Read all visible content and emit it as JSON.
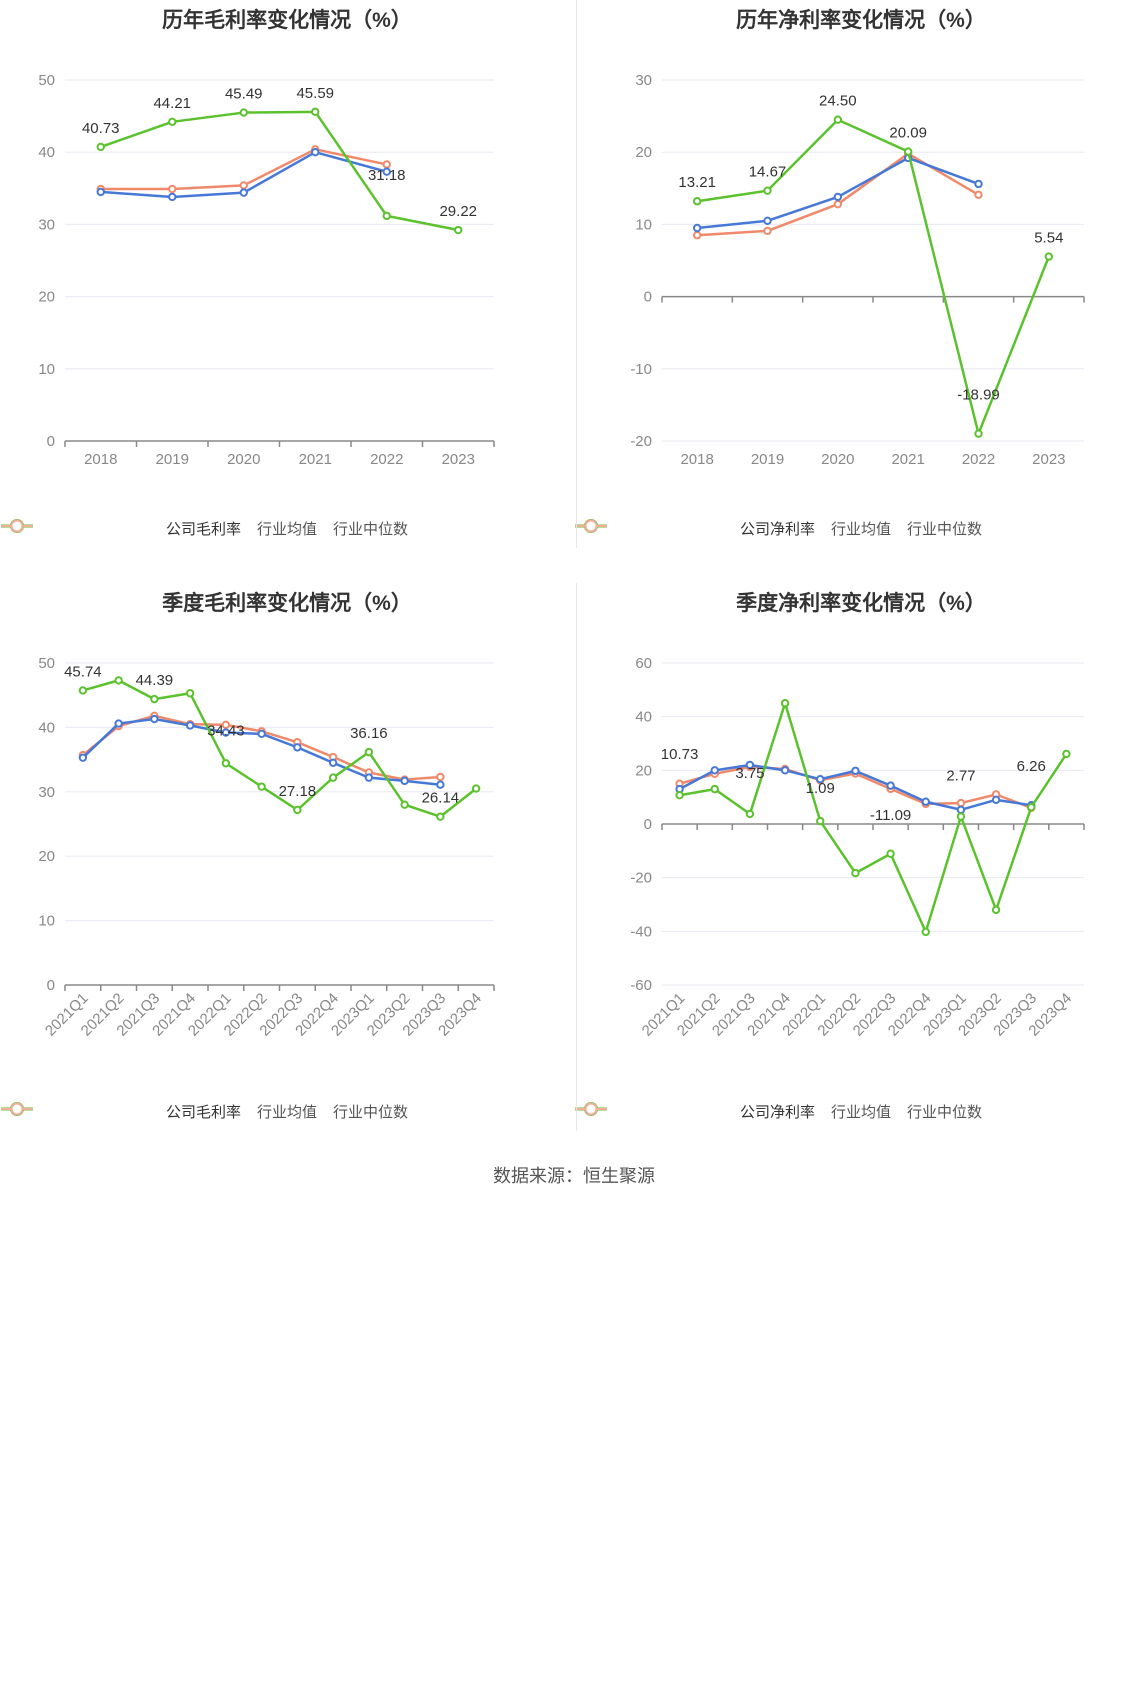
{
  "footer": "数据来源：恒生聚源",
  "colors": {
    "company": "#5bc22e",
    "avg": "#4678d8",
    "median": "#f0896a",
    "grid": "#e8e8f2",
    "axis": "#888888"
  },
  "chart_data": [
    {
      "id": "annual-gross",
      "type": "line",
      "title": "历年毛利率变化情况（%）",
      "categories": [
        "2018",
        "2019",
        "2020",
        "2021",
        "2022",
        "2023"
      ],
      "ylim": [
        0,
        50
      ],
      "yticks": [
        0,
        10,
        20,
        30,
        40,
        50
      ],
      "grid": true,
      "legend_position": "bottom",
      "series": [
        {
          "name": "公司毛利率",
          "color": "#5bc22e",
          "values": [
            40.73,
            44.21,
            45.49,
            45.59,
            31.18,
            29.22
          ],
          "labels": [
            "40.73",
            "44.21",
            "45.49",
            "45.59",
            "31.18",
            "29.22"
          ]
        },
        {
          "name": "行业均值",
          "color": "#4678d8",
          "values": [
            34.5,
            33.8,
            34.4,
            40.0,
            37.3,
            null
          ]
        },
        {
          "name": "行业中位数",
          "color": "#f0896a",
          "values": [
            34.9,
            34.9,
            35.4,
            40.4,
            38.3,
            null
          ]
        }
      ]
    },
    {
      "id": "annual-net",
      "type": "line",
      "title": "历年净利率变化情况（%）",
      "categories": [
        "2018",
        "2019",
        "2020",
        "2021",
        "2022",
        "2023"
      ],
      "ylim": [
        -20,
        30
      ],
      "yticks": [
        -20,
        -10,
        0,
        10,
        20,
        30
      ],
      "grid": true,
      "legend_position": "bottom",
      "series": [
        {
          "name": "公司净利率",
          "color": "#5bc22e",
          "values": [
            13.21,
            14.67,
            24.5,
            20.09,
            -18.99,
            5.54
          ],
          "labels": [
            "13.21",
            "14.67",
            "24.50",
            "20.09",
            "-18.99",
            "5.54"
          ]
        },
        {
          "name": "行业均值",
          "color": "#4678d8",
          "values": [
            9.5,
            10.5,
            13.8,
            19.2,
            15.6,
            null
          ]
        },
        {
          "name": "行业中位数",
          "color": "#f0896a",
          "values": [
            8.5,
            9.1,
            12.8,
            19.8,
            14.1,
            null
          ]
        }
      ]
    },
    {
      "id": "quarterly-gross",
      "type": "line",
      "title": "季度毛利率变化情况（%）",
      "categories": [
        "2021Q1",
        "2021Q2",
        "2021Q3",
        "2021Q4",
        "2022Q1",
        "2022Q2",
        "2022Q3",
        "2022Q4",
        "2023Q1",
        "2023Q2",
        "2023Q3",
        "2023Q4"
      ],
      "ylim": [
        0,
        50
      ],
      "yticks": [
        0,
        10,
        20,
        30,
        40,
        50
      ],
      "grid": true,
      "legend_position": "bottom",
      "series": [
        {
          "name": "公司毛利率",
          "color": "#5bc22e",
          "values": [
            45.74,
            47.3,
            44.39,
            45.3,
            34.43,
            30.8,
            27.18,
            32.2,
            36.16,
            28.0,
            26.14,
            30.5
          ],
          "labels": [
            "45.74",
            null,
            "44.39",
            null,
            "34.43",
            null,
            "27.18",
            null,
            "36.16",
            null,
            "26.14",
            null
          ]
        },
        {
          "name": "行业均值",
          "color": "#4678d8",
          "values": [
            35.3,
            40.6,
            41.3,
            40.3,
            39.2,
            39.0,
            36.9,
            34.5,
            32.2,
            31.7,
            31.1,
            null
          ]
        },
        {
          "name": "行业中位数",
          "color": "#f0896a",
          "values": [
            35.7,
            40.2,
            41.8,
            40.5,
            40.4,
            39.4,
            37.7,
            35.4,
            33.0,
            31.9,
            32.3,
            null
          ]
        }
      ]
    },
    {
      "id": "quarterly-net",
      "type": "line",
      "title": "季度净利率变化情况（%）",
      "categories": [
        "2021Q1",
        "2021Q2",
        "2021Q3",
        "2021Q4",
        "2022Q1",
        "2022Q2",
        "2022Q3",
        "2022Q4",
        "2023Q1",
        "2023Q2",
        "2023Q3",
        "2023Q4"
      ],
      "ylim": [
        -60,
        60
      ],
      "yticks": [
        -60,
        -40,
        -20,
        0,
        20,
        40,
        60
      ],
      "grid": true,
      "legend_position": "bottom",
      "series": [
        {
          "name": "公司净利率",
          "color": "#5bc22e",
          "values": [
            10.73,
            13.0,
            3.75,
            45.0,
            1.09,
            -18.3,
            -11.09,
            -40.2,
            2.77,
            -32.0,
            6.26,
            26.1
          ],
          "labels": [
            "10.73",
            null,
            "3.75",
            null,
            "1.09",
            null,
            "-11.09",
            null,
            "2.77",
            null,
            "6.26",
            null
          ]
        },
        {
          "name": "行业均值",
          "color": "#4678d8",
          "values": [
            13.0,
            20.0,
            22.0,
            20.0,
            16.7,
            19.8,
            14.3,
            8.3,
            5.3,
            9.0,
            7.0,
            null
          ]
        },
        {
          "name": "行业中位数",
          "color": "#f0896a",
          "values": [
            15.0,
            18.7,
            21.3,
            20.5,
            16.3,
            18.8,
            13.1,
            7.5,
            7.8,
            11.0,
            6.0,
            null
          ]
        }
      ]
    }
  ]
}
